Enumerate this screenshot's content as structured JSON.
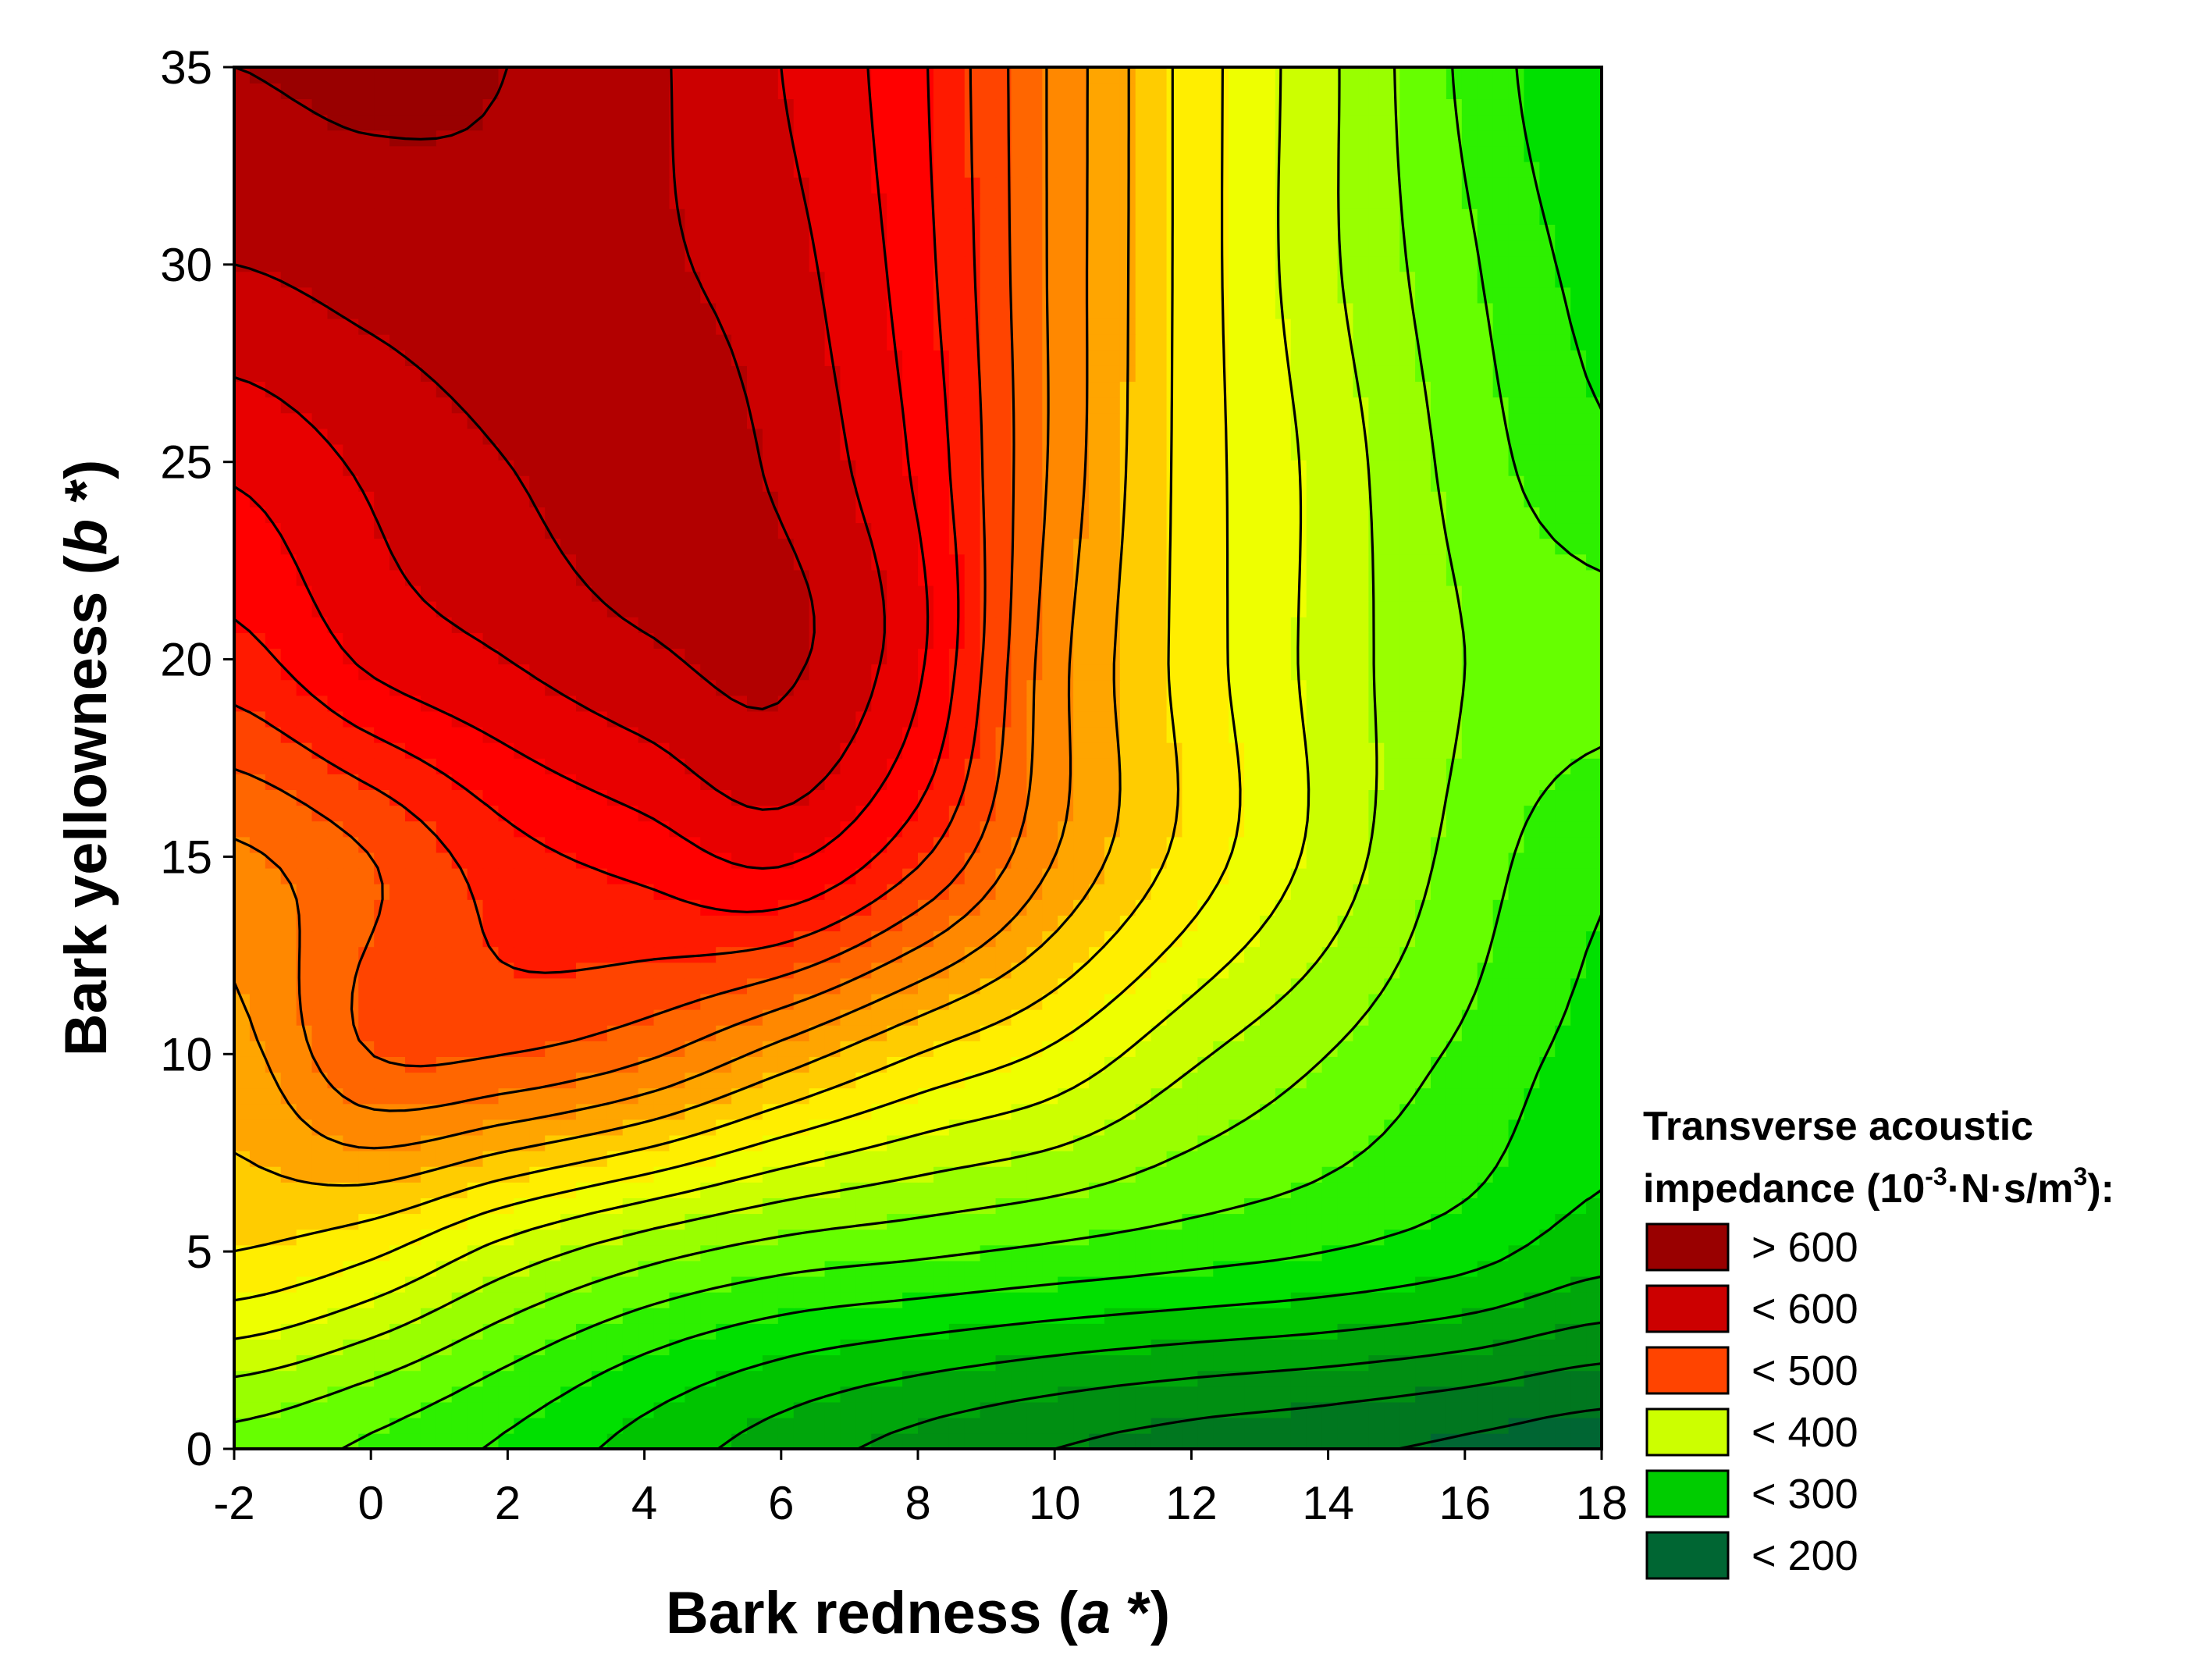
{
  "chart_data": {
    "type": "contour",
    "xlabel": {
      "text": "Bark redness (",
      "var": "a",
      "suffix": " *)"
    },
    "ylabel": {
      "text": "Bark yellowness (",
      "var": "b",
      "suffix": " *)"
    },
    "xlim": [
      -2,
      18
    ],
    "ylim": [
      0,
      35
    ],
    "xticks": [
      -2,
      0,
      2,
      4,
      6,
      8,
      10,
      12,
      14,
      16,
      18
    ],
    "yticks": [
      0,
      5,
      10,
      15,
      20,
      25,
      30,
      35
    ],
    "grid": false,
    "legend": {
      "placement": "right-bottom",
      "title_line1": "Transverse acoustic",
      "title_line2": "impedance (10",
      "title_sup1": "-3",
      "title_mid": "·N·s/m",
      "title_sup2": "3",
      "title_end": "):",
      "entries": [
        {
          "label": "> 600",
          "color": "#990000"
        },
        {
          "label": "< 600",
          "color": "#cc0000"
        },
        {
          "label": "< 500",
          "color": "#ff4400"
        },
        {
          "label": "< 400",
          "color": "#ccff00"
        },
        {
          "label": "< 300",
          "color": "#00cc00"
        },
        {
          "label": "< 200",
          "color": "#006633"
        }
      ]
    },
    "contour_colors": [
      "#006633",
      "#00771f",
      "#008f12",
      "#00a60b",
      "#00c400",
      "#00e000",
      "#2df000",
      "#66ff00",
      "#99ff00",
      "#ccff00",
      "#eeff00",
      "#ffee00",
      "#ffcc00",
      "#ffa500",
      "#ff8800",
      "#ff6600",
      "#ff4400",
      "#ff1a00",
      "#ff0000",
      "#e80000",
      "#cc0000",
      "#b20000",
      "#990000"
    ],
    "grid_x": [
      -2,
      0,
      2,
      4,
      6,
      8,
      10,
      12,
      14,
      16,
      18
    ],
    "grid_y": [
      0,
      5,
      10,
      15,
      20,
      25,
      30,
      35
    ],
    "z": [
      [
        310,
        290,
        265,
        235,
        208,
        186,
        170,
        158,
        150,
        140,
        130
      ],
      [
        420,
        400,
        360,
        330,
        310,
        300,
        290,
        280,
        270,
        255,
        230
      ],
      [
        460,
        520,
        520,
        500,
        460,
        420,
        390,
        350,
        320,
        290,
        260
      ],
      [
        490,
        520,
        560,
        580,
        600,
        550,
        470,
        410,
        360,
        310,
        275
      ],
      [
        560,
        600,
        620,
        640,
        650,
        600,
        480,
        410,
        360,
        320,
        305
      ],
      [
        600,
        625,
        645,
        660,
        640,
        590,
        490,
        410,
        360,
        310,
        275
      ],
      [
        645,
        655,
        660,
        650,
        630,
        580,
        490,
        410,
        350,
        300,
        260
      ],
      [
        670,
        675,
        670,
        650,
        620,
        575,
        490,
        410,
        350,
        290,
        245
      ]
    ]
  }
}
